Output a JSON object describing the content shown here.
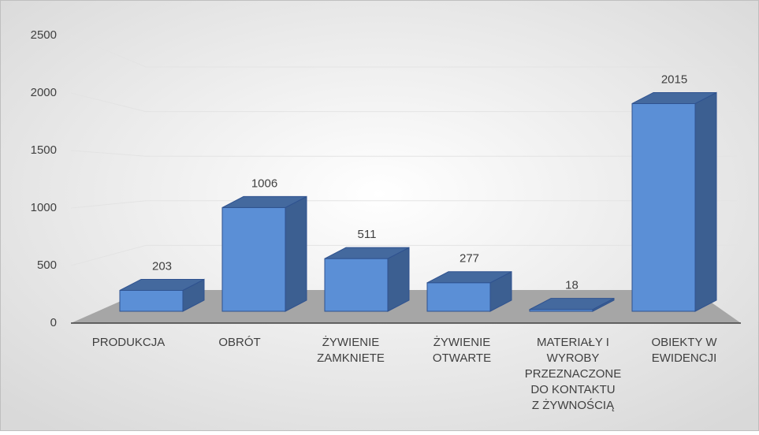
{
  "chart_data": {
    "type": "bar3d",
    "categories": [
      [
        "PRODUKCJA"
      ],
      [
        "OBRÓT"
      ],
      [
        "ŻYWIENIE",
        "ZAMKNIETE"
      ],
      [
        "ŻYWIENIE",
        "OTWARTE"
      ],
      [
        "MATERIAŁY I",
        "WYROBY",
        "PRZEZNACZONE",
        "DO KONTAKTU",
        "Z ŻYWNOŚCIĄ"
      ],
      [
        "OBIEKTY W",
        "EWIDENCJI"
      ]
    ],
    "values": [
      203,
      1006,
      511,
      277,
      18,
      2015
    ],
    "color": "#5b8fd6",
    "ylim": [
      0,
      2500
    ],
    "yticks": [
      0,
      500,
      1000,
      1500,
      2000,
      2500
    ],
    "grid": true
  }
}
